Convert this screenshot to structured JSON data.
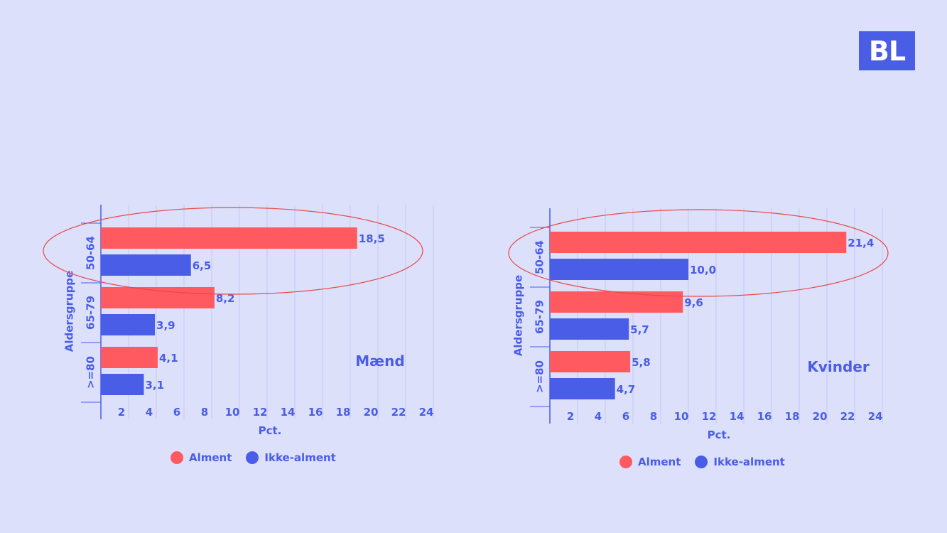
{
  "logo_text": "BL",
  "colors": {
    "background": "#dce0fb",
    "alment": "#ff5a5f",
    "ikke_alment": "#4a5de6",
    "text": "#4a5de6",
    "highlight": "#e84a4a"
  },
  "legend": {
    "alment": "Alment",
    "ikke_alment": "Ikke-alment"
  },
  "chart_data": [
    {
      "type": "bar",
      "orientation": "horizontal",
      "title": "Mænd",
      "xlabel": "Pct.",
      "ylabel": "Aldersgruppe",
      "categories": [
        "50-64",
        "65-79",
        ">=80"
      ],
      "series": [
        {
          "name": "Alment",
          "values": [
            18.5,
            8.2,
            4.1
          ],
          "labels": [
            "18,5",
            "8,2",
            "4,1"
          ]
        },
        {
          "name": "Ikke-alment",
          "values": [
            6.5,
            3.9,
            3.1
          ],
          "labels": [
            "6,5",
            "3,9",
            "3,1"
          ]
        }
      ],
      "xticks": [
        "2",
        "4",
        "6",
        "8",
        "10",
        "12",
        "14",
        "16",
        "18",
        "20",
        "22",
        "24"
      ],
      "xlim": [
        0,
        24
      ],
      "grid": "vertical",
      "highlight": "50-64"
    },
    {
      "type": "bar",
      "orientation": "horizontal",
      "title": "Kvinder",
      "xlabel": "Pct.",
      "ylabel": "Aldersgruppe",
      "categories": [
        "50-64",
        "65-79",
        ">=80"
      ],
      "series": [
        {
          "name": "Alment",
          "values": [
            21.4,
            9.6,
            5.8
          ],
          "labels": [
            "21,4",
            "9,6",
            "5,8"
          ]
        },
        {
          "name": "Ikke-alment",
          "values": [
            10.0,
            5.7,
            4.7
          ],
          "labels": [
            "10,0",
            "5,7",
            "4,7"
          ]
        }
      ],
      "xticks": [
        "2",
        "4",
        "6",
        "8",
        "10",
        "12",
        "14",
        "16",
        "18",
        "20",
        "22",
        "24"
      ],
      "xlim": [
        0,
        24
      ],
      "grid": "vertical",
      "highlight": "50-64"
    }
  ]
}
